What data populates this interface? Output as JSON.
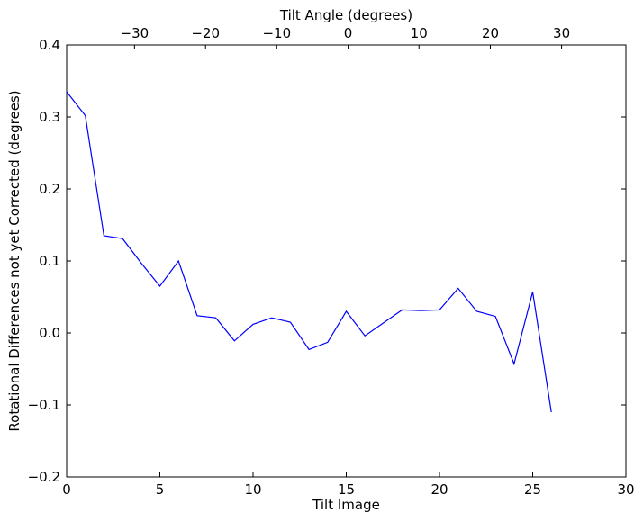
{
  "chart_data": {
    "type": "line",
    "xlabel": "Tilt Image",
    "ylabel": "Rotational Differences not yet Corrected (degrees)",
    "top_xlabel": "Tilt Angle (degrees)",
    "xlim": [
      0,
      30
    ],
    "ylim": [
      -0.2,
      0.4
    ],
    "x_ticks": [
      0,
      5,
      10,
      15,
      20,
      25,
      30
    ],
    "y_ticks": [
      -0.2,
      -0.1,
      0.0,
      0.1,
      0.2,
      0.3,
      0.4
    ],
    "y_tick_labels": [
      "−0.2",
      "−0.1",
      "0.0",
      "0.1",
      "0.2",
      "0.3",
      "0.4"
    ],
    "top_axis": {
      "tick_values": [
        -30,
        -20,
        -10,
        0,
        10,
        20,
        30
      ],
      "tick_labels": [
        "−30",
        "−20",
        "−10",
        "0",
        "10",
        "20",
        "30"
      ],
      "tick_positions_in_tilt_image": [
        3.64,
        7.45,
        11.27,
        15.1,
        18.9,
        22.73,
        26.55
      ]
    },
    "grid": false,
    "series": [
      {
        "color": "#0000ff",
        "x": [
          0,
          1,
          2,
          3,
          4,
          5,
          6,
          7,
          8,
          9,
          10,
          11,
          12,
          13,
          14,
          15,
          16,
          17,
          18,
          19,
          20,
          21,
          22,
          23,
          24,
          25,
          26
        ],
        "values": [
          0.335,
          0.302,
          0.135,
          0.131,
          0.097,
          0.065,
          0.1,
          0.024,
          0.021,
          -0.011,
          0.012,
          0.021,
          0.015,
          -0.023,
          -0.013,
          0.03,
          -0.004,
          0.014,
          0.032,
          0.031,
          0.032,
          0.062,
          0.03,
          0.023,
          -0.043,
          0.057,
          -0.11
        ]
      }
    ]
  }
}
